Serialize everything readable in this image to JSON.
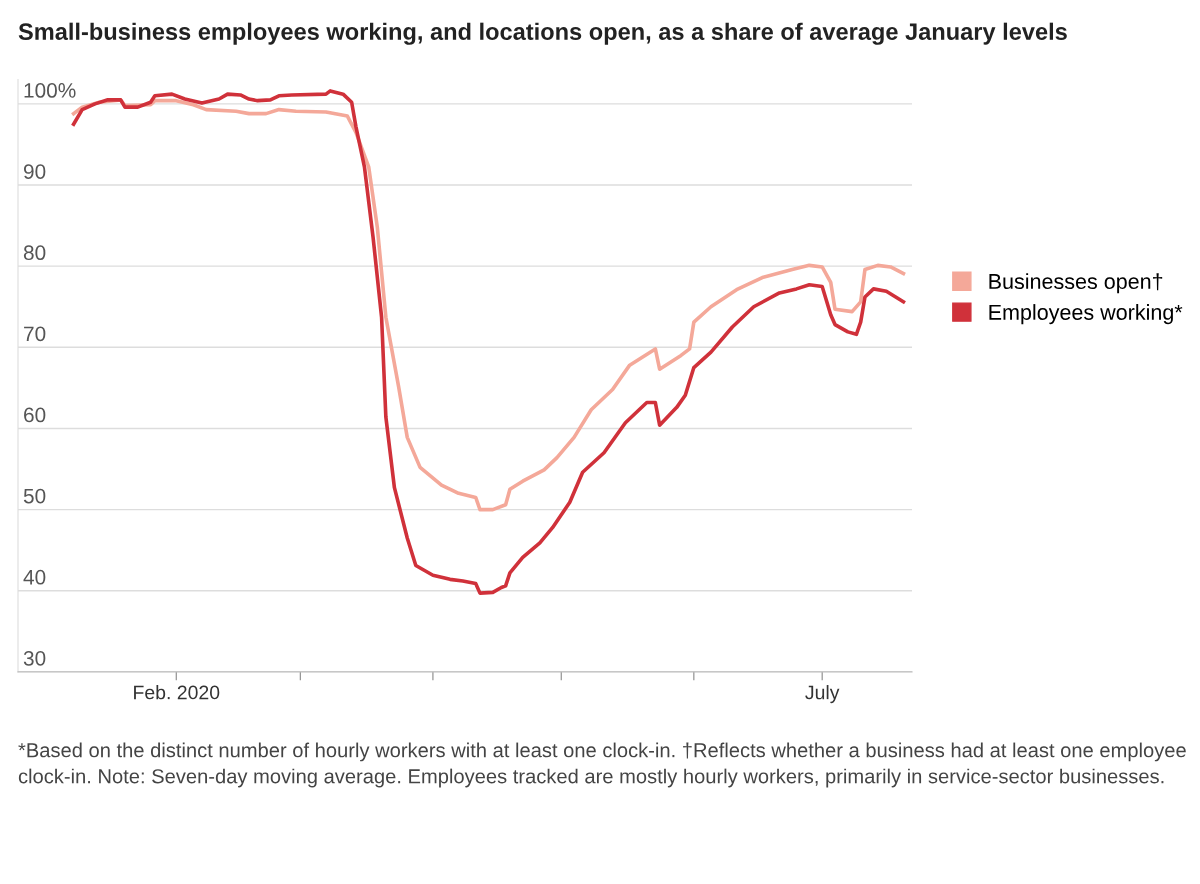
{
  "chart_data": {
    "type": "line",
    "title": "Small-business employees working, and locations open, as a share of average January levels",
    "annotations": [
      "*Based on the distinct number of hourly workers with at least one clock-in. †Reflects whether a business had at least one employee clock-in. Note: Seven-day moving average. Employees tracked are mostly hourly workers, primarily in service-sector businesses."
    ],
    "xlim": [
      "2019-12-26",
      "2020-07-22"
    ],
    "xticks": [
      {
        "value": "2020-02-01",
        "label": "Feb. 2020"
      },
      {
        "value": "2020-03-01",
        "label": null
      },
      {
        "value": "2020-04-01",
        "label": null
      },
      {
        "value": "2020-05-01",
        "label": null
      },
      {
        "value": "2020-06-01",
        "label": null
      },
      {
        "value": "2020-07-01",
        "label": "July"
      }
    ],
    "ylim": [
      30,
      103
    ],
    "yticks": [
      30,
      40,
      50,
      60,
      70,
      80,
      90,
      {
        "value": 100,
        "label": "100%"
      }
    ],
    "grid": "y",
    "legend": "right",
    "marker": "none",
    "line_style": "solid",
    "series": [
      {
        "name": "Businesses open†",
        "color": "#f4a899",
        "x": [
          "2020-01-08",
          "2020-01-10",
          "2020-01-14",
          "2020-01-19",
          "2020-01-20",
          "2020-01-26",
          "2020-01-27",
          "2020-02-01",
          "2020-02-05",
          "2020-02-08",
          "2020-02-15",
          "2020-02-18",
          "2020-02-22",
          "2020-02-25",
          "2020-02-29",
          "2020-03-07",
          "2020-03-12",
          "2020-03-14",
          "2020-03-17",
          "2020-03-19",
          "2020-03-21",
          "2020-03-24",
          "2020-03-26",
          "2020-03-29",
          "2020-04-03",
          "2020-04-07",
          "2020-04-11",
          "2020-04-12",
          "2020-04-15",
          "2020-04-18",
          "2020-04-19",
          "2020-04-22",
          "2020-04-27",
          "2020-04-30",
          "2020-05-04",
          "2020-05-08",
          "2020-05-13",
          "2020-05-17",
          "2020-05-23",
          "2020-05-24",
          "2020-05-29",
          "2020-05-31",
          "2020-06-01",
          "2020-06-05",
          "2020-06-11",
          "2020-06-17",
          "2020-06-24",
          "2020-06-28",
          "2020-07-01",
          "2020-07-03",
          "2020-07-04",
          "2020-07-08",
          "2020-07-10",
          "2020-07-11",
          "2020-07-14",
          "2020-07-17",
          "2020-07-20"
        ],
        "values": [
          98.8,
          99.6,
          100.2,
          100.5,
          99.8,
          99.9,
          100.4,
          100.4,
          99.9,
          99.3,
          99.1,
          98.8,
          98.8,
          99.3,
          99.1,
          99.0,
          98.5,
          96.5,
          92.2,
          84.8,
          73.7,
          65.1,
          58.9,
          55.2,
          53,
          52,
          51.5,
          50.0,
          50.0,
          50.6,
          52.5,
          53.5,
          54.9,
          56.4,
          58.9,
          62.3,
          64.8,
          67.8,
          69.8,
          67.3,
          69.0,
          69.8,
          73.1,
          75,
          77.1,
          78.6,
          79.6,
          80.1,
          79.9,
          78,
          74.7,
          74.4,
          75.6,
          79.6,
          80.1,
          79.9,
          79.1
        ]
      },
      {
        "name": "Employees working*",
        "color": "#d0313a",
        "x": [
          "2020-01-08",
          "2020-01-10",
          "2020-01-13",
          "2020-01-16",
          "2020-01-19",
          "2020-01-20",
          "2020-01-23",
          "2020-01-26",
          "2020-01-27",
          "2020-01-31",
          "2020-02-03",
          "2020-02-07",
          "2020-02-11",
          "2020-02-13",
          "2020-02-16",
          "2020-02-18",
          "2020-02-20",
          "2020-02-23",
          "2020-02-25",
          "2020-02-28",
          "2020-03-07",
          "2020-03-08",
          "2020-03-11",
          "2020-03-13",
          "2020-03-14",
          "2020-03-16",
          "2020-03-18",
          "2020-03-20",
          "2020-03-21",
          "2020-03-23",
          "2020-03-26",
          "2020-03-28",
          "2020-04-01",
          "2020-04-05",
          "2020-04-08",
          "2020-04-11",
          "2020-04-12",
          "2020-04-15",
          "2020-04-17",
          "2020-04-18",
          "2020-04-19",
          "2020-04-22",
          "2020-04-26",
          "2020-04-29",
          "2020-05-03",
          "2020-05-06",
          "2020-05-11",
          "2020-05-16",
          "2020-05-21",
          "2020-05-23",
          "2020-05-24",
          "2020-05-28",
          "2020-05-30",
          "2020-06-01",
          "2020-06-05",
          "2020-06-10",
          "2020-06-15",
          "2020-06-21",
          "2020-06-25",
          "2020-06-28",
          "2020-07-01",
          "2020-07-03",
          "2020-07-04",
          "2020-07-07",
          "2020-07-09",
          "2020-07-10",
          "2020-07-11",
          "2020-07-13",
          "2020-07-16",
          "2020-07-20"
        ],
        "values": [
          97.5,
          99.3,
          100,
          100.5,
          100.5,
          99.6,
          99.6,
          100.2,
          101,
          101.2,
          100.6,
          100.1,
          100.6,
          101.2,
          101.1,
          100.6,
          100.4,
          100.5,
          101,
          101.1,
          101.2,
          101.6,
          101.2,
          100.2,
          97.2,
          92.2,
          83.6,
          73.7,
          61.4,
          52.7,
          46.5,
          43.1,
          41.9,
          41.4,
          41.2,
          40.9,
          39.7,
          39.8,
          40.4,
          40.6,
          42.2,
          44.1,
          45.9,
          47.8,
          50.9,
          54.6,
          57.0,
          60.7,
          63.2,
          63.2,
          60.4,
          62.6,
          64.1,
          67.5,
          69.4,
          72.5,
          75,
          76.7,
          77.2,
          77.7,
          77.5,
          74,
          72.8,
          71.9,
          71.6,
          73.1,
          76.2,
          77.2,
          76.9,
          75.6
        ]
      }
    ]
  }
}
